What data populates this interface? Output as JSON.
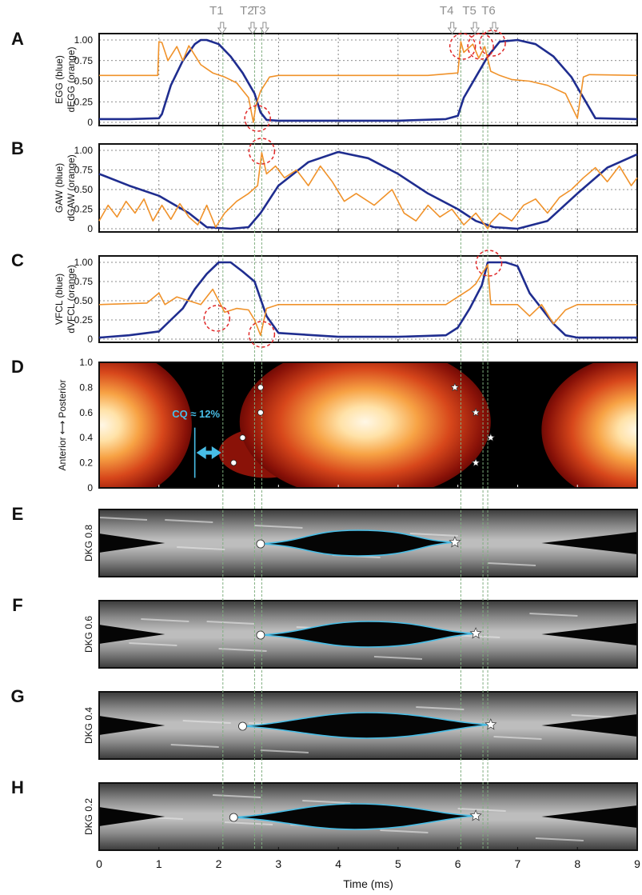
{
  "figure": {
    "time_markers": [
      {
        "name": "T1",
        "t": 2.07
      },
      {
        "name": "T2",
        "t": 2.6
      },
      {
        "name": "T3",
        "t": 2.72
      },
      {
        "name": "T4",
        "t": 6.05
      },
      {
        "name": "T5",
        "t": 6.42
      },
      {
        "name": "T6",
        "t": 6.5
      }
    ],
    "x_axis": {
      "label": "Time (ms)",
      "range": [
        0,
        9
      ],
      "ticks": [
        "0",
        "1",
        "2",
        "3",
        "4",
        "5",
        "6",
        "7",
        "8",
        "9"
      ]
    },
    "cq_annotation": "CQ ≈ 12%",
    "colors": {
      "blue": "#1f2d8f",
      "orange": "#f0922a",
      "marker_gray": "#8f8f8f",
      "cyan": "#48bde6",
      "red_circle": "#e02828",
      "green_line": "#7fae7f"
    }
  },
  "chart_data": [
    {
      "panel": "A",
      "type": "line",
      "ylabel": [
        "EGG (blue)",
        "dEGG (orange)"
      ],
      "ylim": [
        0,
        1
      ],
      "yticks": [
        "0",
        "0.25",
        "0.50",
        "0.75",
        "1.00"
      ],
      "grid": true,
      "series": [
        {
          "color": "blue",
          "x": [
            0,
            0.5,
            1.0,
            1.05,
            1.2,
            1.4,
            1.6,
            1.7,
            1.8,
            2.0,
            2.2,
            2.4,
            2.6,
            2.7,
            2.8,
            3.0,
            4.0,
            5.0,
            5.8,
            6.0,
            6.1,
            6.3,
            6.5,
            6.7,
            7.0,
            7.3,
            7.6,
            7.9,
            8.1,
            8.3,
            9.0
          ],
          "y": [
            0.04,
            0.04,
            0.05,
            0.1,
            0.45,
            0.75,
            0.95,
            1.0,
            1.0,
            0.95,
            0.8,
            0.6,
            0.35,
            0.12,
            0.03,
            0.02,
            0.02,
            0.02,
            0.04,
            0.08,
            0.3,
            0.55,
            0.8,
            0.98,
            1.0,
            0.95,
            0.8,
            0.55,
            0.3,
            0.05,
            0.04
          ]
        },
        {
          "color": "orange",
          "x": [
            0,
            0.98,
            1.0,
            1.05,
            1.15,
            1.3,
            1.4,
            1.5,
            1.7,
            1.9,
            2.1,
            2.3,
            2.5,
            2.58,
            2.62,
            2.7,
            2.85,
            3.0,
            5.5,
            6.0,
            6.05,
            6.1,
            6.25,
            6.35,
            6.45,
            6.55,
            6.7,
            6.9,
            7.2,
            7.5,
            7.8,
            7.9,
            8.0,
            8.1,
            8.2,
            9.0
          ],
          "y": [
            0.57,
            0.57,
            0.98,
            0.97,
            0.75,
            0.92,
            0.75,
            0.93,
            0.7,
            0.6,
            0.55,
            0.48,
            0.3,
            0.0,
            0.2,
            0.38,
            0.55,
            0.57,
            0.57,
            0.6,
            0.98,
            0.85,
            0.95,
            0.78,
            0.92,
            0.62,
            0.57,
            0.52,
            0.5,
            0.45,
            0.35,
            0.2,
            0.05,
            0.55,
            0.58,
            0.57
          ]
        }
      ]
    },
    {
      "panel": "B",
      "type": "line",
      "ylabel": [
        "GAW (blue)",
        "dGAW (orange)"
      ],
      "ylim": [
        0,
        1
      ],
      "yticks": [
        "0",
        "0.25",
        "0.50",
        "0.75",
        "1.00"
      ],
      "grid": true,
      "series": [
        {
          "color": "blue",
          "x": [
            0,
            0.5,
            1.0,
            1.5,
            1.8,
            2.2,
            2.5,
            2.7,
            3.0,
            3.5,
            4.0,
            4.5,
            5.0,
            5.5,
            6.0,
            6.3,
            6.6,
            7.0,
            7.5,
            8.0,
            8.5,
            9.0
          ],
          "y": [
            0.7,
            0.55,
            0.42,
            0.2,
            0.02,
            0.0,
            0.02,
            0.2,
            0.55,
            0.85,
            0.98,
            0.9,
            0.7,
            0.45,
            0.25,
            0.1,
            0.02,
            0.0,
            0.1,
            0.45,
            0.78,
            0.95
          ]
        },
        {
          "color": "orange",
          "x": [
            0,
            0.15,
            0.3,
            0.45,
            0.6,
            0.75,
            0.9,
            1.05,
            1.2,
            1.35,
            1.5,
            1.65,
            1.8,
            1.95,
            2.1,
            2.3,
            2.5,
            2.65,
            2.72,
            2.8,
            2.95,
            3.1,
            3.3,
            3.5,
            3.7,
            3.9,
            4.1,
            4.3,
            4.6,
            4.9,
            5.1,
            5.3,
            5.5,
            5.7,
            5.9,
            6.1,
            6.3,
            6.5,
            6.55,
            6.7,
            6.9,
            7.1,
            7.3,
            7.5,
            7.7,
            7.9,
            8.1,
            8.3,
            8.5,
            8.7,
            8.9,
            9.0
          ],
          "y": [
            0.1,
            0.3,
            0.15,
            0.35,
            0.2,
            0.38,
            0.1,
            0.3,
            0.12,
            0.32,
            0.15,
            0.05,
            0.3,
            0.02,
            0.2,
            0.35,
            0.45,
            0.55,
            0.97,
            0.7,
            0.8,
            0.65,
            0.75,
            0.55,
            0.8,
            0.6,
            0.35,
            0.45,
            0.3,
            0.5,
            0.2,
            0.1,
            0.3,
            0.15,
            0.25,
            0.05,
            0.2,
            0.0,
            0.08,
            0.2,
            0.1,
            0.3,
            0.38,
            0.2,
            0.4,
            0.5,
            0.65,
            0.78,
            0.6,
            0.8,
            0.55,
            0.65
          ]
        }
      ]
    },
    {
      "panel": "C",
      "type": "line",
      "ylabel": [
        "VFCL (blue)",
        "dVFCL (orange)"
      ],
      "ylim": [
        0,
        1
      ],
      "yticks": [
        "0",
        "0.25",
        "0.50",
        "0.75",
        "1.00"
      ],
      "grid": true,
      "series": [
        {
          "color": "blue",
          "x": [
            0,
            0.5,
            1.0,
            1.2,
            1.4,
            1.6,
            1.8,
            2.0,
            2.2,
            2.4,
            2.6,
            2.8,
            3.0,
            4.0,
            5.0,
            5.8,
            6.0,
            6.2,
            6.4,
            6.5,
            6.6,
            6.8,
            7.0,
            7.2,
            7.4,
            7.6,
            7.8,
            8.0,
            8.5,
            9.0
          ],
          "y": [
            0.02,
            0.05,
            0.1,
            0.25,
            0.4,
            0.65,
            0.85,
            1.0,
            1.0,
            0.88,
            0.75,
            0.3,
            0.08,
            0.03,
            0.03,
            0.05,
            0.15,
            0.4,
            0.7,
            1.0,
            1.0,
            1.0,
            0.95,
            0.6,
            0.4,
            0.2,
            0.05,
            0.02,
            0.02,
            0.02
          ]
        },
        {
          "color": "orange",
          "x": [
            0,
            0.8,
            1.0,
            1.1,
            1.3,
            1.5,
            1.7,
            1.9,
            2.1,
            2.3,
            2.5,
            2.6,
            2.7,
            2.8,
            3.0,
            5.8,
            6.0,
            6.2,
            6.3,
            6.4,
            6.5,
            6.55,
            6.7,
            7.0,
            7.2,
            7.4,
            7.6,
            7.8,
            8.0,
            9.0
          ],
          "y": [
            0.45,
            0.47,
            0.6,
            0.45,
            0.55,
            0.5,
            0.45,
            0.65,
            0.35,
            0.4,
            0.38,
            0.25,
            0.05,
            0.4,
            0.45,
            0.45,
            0.55,
            0.65,
            0.72,
            0.85,
            0.97,
            0.45,
            0.45,
            0.45,
            0.3,
            0.45,
            0.2,
            0.38,
            0.45,
            0.45
          ]
        }
      ]
    },
    {
      "panel": "D",
      "type": "heatmap",
      "ylabel": "Anterior ⟷ Posterior",
      "ylim": [
        0,
        1
      ],
      "yticks": [
        "0",
        "0.2",
        "0.4",
        "0.6",
        "0.8",
        "1.0"
      ],
      "closing_markers": [
        {
          "t": 2.7,
          "y": 0.8
        },
        {
          "t": 2.7,
          "y": 0.6
        },
        {
          "t": 2.4,
          "y": 0.4
        },
        {
          "t": 2.25,
          "y": 0.2
        }
      ],
      "opening_markers": [
        {
          "t": 5.95,
          "y": 0.8
        },
        {
          "t": 6.3,
          "y": 0.6
        },
        {
          "t": 6.55,
          "y": 0.4
        },
        {
          "t": 6.3,
          "y": 0.2
        }
      ]
    },
    {
      "panel": "E",
      "type": "heatmap",
      "ylabel": "DKG 0.8",
      "open": [
        2.7,
        5.95
      ]
    },
    {
      "panel": "F",
      "type": "heatmap",
      "ylabel": "DKG 0.6",
      "open": [
        2.7,
        6.3
      ]
    },
    {
      "panel": "G",
      "type": "heatmap",
      "ylabel": "DKG 0.4",
      "open": [
        2.4,
        6.55
      ]
    },
    {
      "panel": "H",
      "type": "heatmap",
      "ylabel": "DKG 0.2",
      "open": [
        2.25,
        6.3
      ]
    }
  ]
}
